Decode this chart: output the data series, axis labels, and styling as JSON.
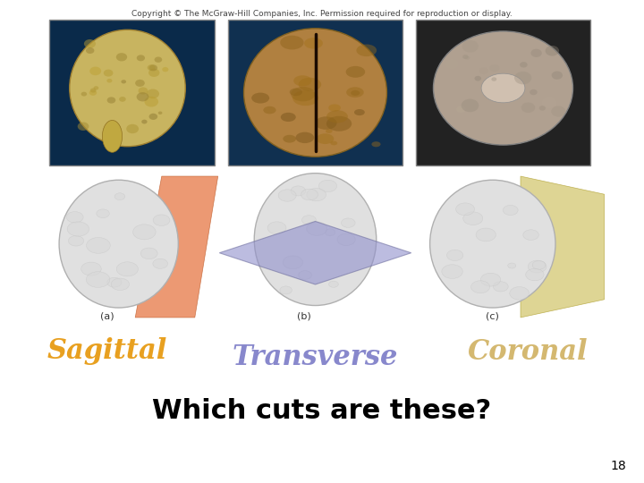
{
  "background_color": "#ffffff",
  "copyright_text": "Copyright © The McGraw-Hill Companies, Inc. Permission required for reproduction or display.",
  "copyright_fontsize": 6.5,
  "copyright_color": "#444444",
  "label_sagittal": "Sagittal",
  "label_transverse": "Transverse",
  "label_coronal": "Coronal",
  "sagittal_color": "#e8a020",
  "transverse_color": "#8888cc",
  "coronal_color": "#d4b870",
  "label_fontsize": 22,
  "question_text": "Which cuts are these?",
  "question_fontsize": 22,
  "question_color": "#000000",
  "slide_number": "18",
  "slide_number_fontsize": 10,
  "slide_number_color": "#000000",
  "plane_sagittal_color": "#e88050",
  "plane_transverse_color": "#9090cc",
  "plane_coronal_color": "#d4c870",
  "label_a": "(a)",
  "label_b": "(b)",
  "label_c": "(c)",
  "abc_fontsize": 8,
  "abc_color": "#333333",
  "top_photo_bg1": "#0a2a4a",
  "top_photo_bg2": "#103050",
  "top_photo_bg3": "#222222",
  "top_brain1": "#c8b060",
  "top_brain2": "#b08040",
  "top_brain3": "#b0a090"
}
